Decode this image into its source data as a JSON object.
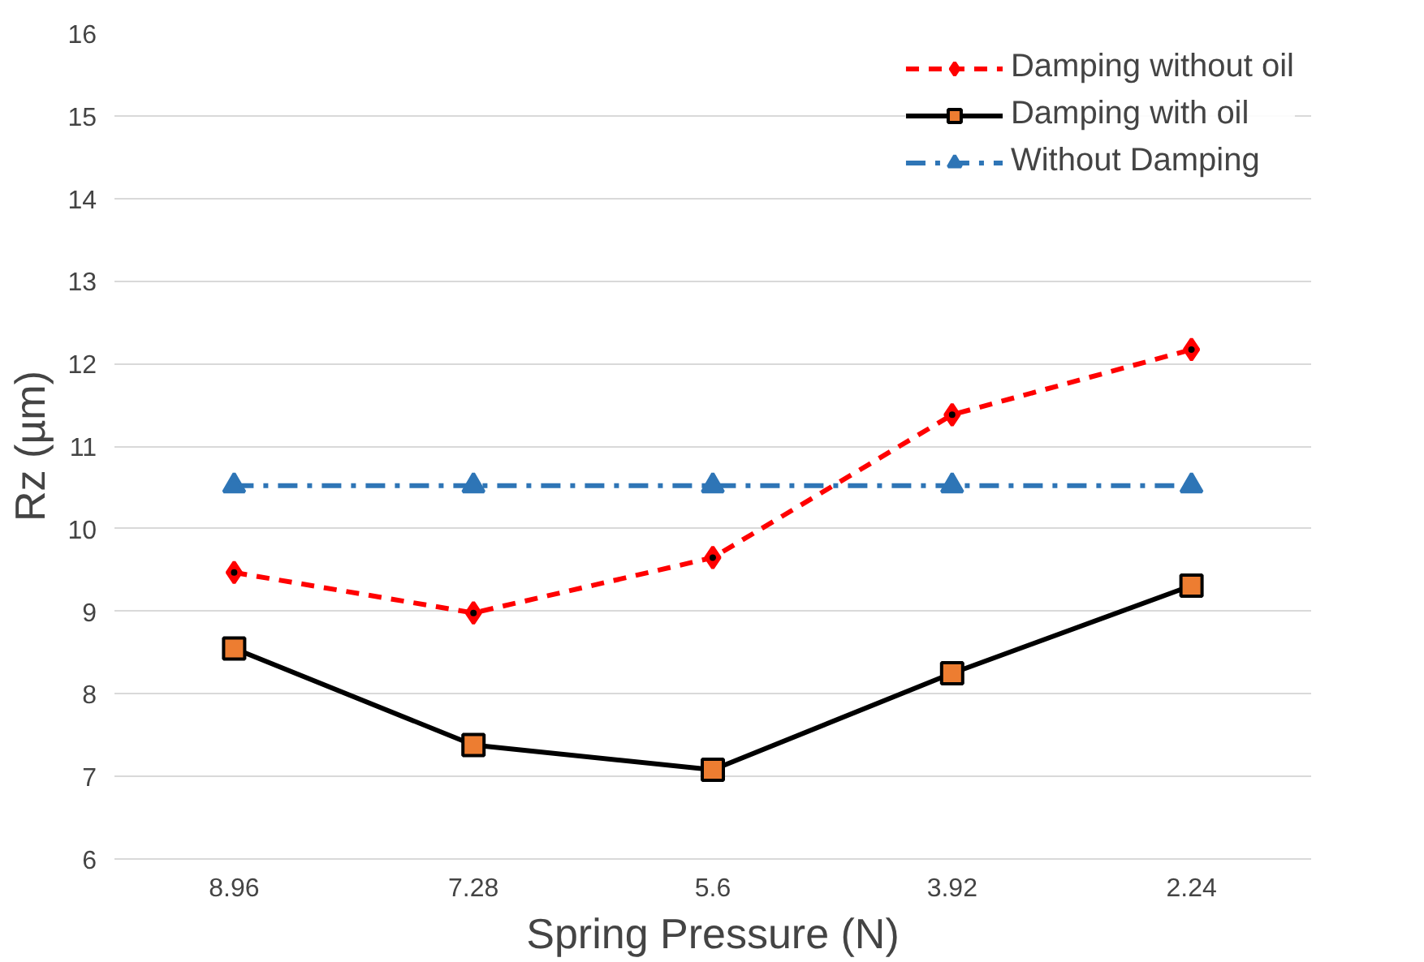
{
  "chart_data": {
    "type": "line",
    "xlabel": "Spring Pressure (N)",
    "ylabel": "Rz (µm)",
    "categories": [
      "8.96",
      "7.28",
      "5.6",
      "3.92",
      "2.24"
    ],
    "series": [
      {
        "name": "Damping without oil",
        "color": "#ff0000",
        "marker": "diamond",
        "line_style": "dashed",
        "values": [
          9.47,
          8.98,
          9.65,
          11.38,
          12.17
        ]
      },
      {
        "name": "Damping with oil",
        "color": "#000000",
        "marker": "square",
        "line_style": "solid",
        "values": [
          8.55,
          7.38,
          7.08,
          8.25,
          9.31
        ]
      },
      {
        "name": "Without Damping",
        "color": "#2e75b6",
        "marker": "triangle",
        "line_style": "dashdot",
        "values": [
          10.52,
          10.52,
          10.52,
          10.52,
          10.52
        ]
      }
    ],
    "ylim": [
      6,
      16
    ],
    "yticks": [
      6,
      7,
      8,
      9,
      10,
      11,
      12,
      13,
      14,
      15,
      16
    ],
    "grid": "y",
    "legend": "top right"
  }
}
